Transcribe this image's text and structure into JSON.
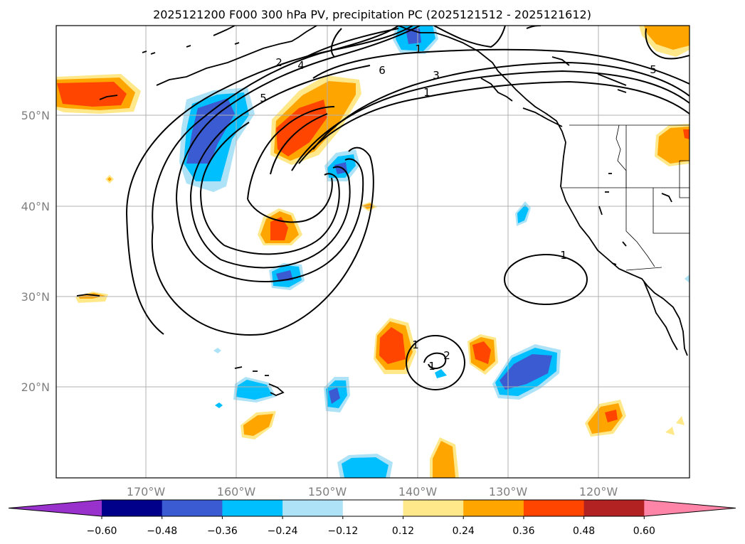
{
  "title": "2025121200 F000 300 hPa PV, precipitation PC (2025121512 - 2025121612)",
  "map": {
    "lat_labels": [
      "50°N",
      "40°N",
      "30°N",
      "20°N"
    ],
    "lon_labels": [
      "170°W",
      "160°W",
      "150°W",
      "140°W",
      "130°W",
      "120°W"
    ],
    "extent": {
      "lon_min": -180,
      "lon_max": -110,
      "lat_min": 10,
      "lat_max": 60
    }
  },
  "contour_labels": [
    "2",
    "4",
    "6",
    "3",
    "1",
    "5",
    "1",
    "5",
    "1",
    "1",
    "2",
    "1"
  ],
  "colorbar": {
    "ticks": [
      "−0.60",
      "−0.48",
      "−0.36",
      "−0.24",
      "−0.12",
      "0.12",
      "0.24",
      "0.36",
      "0.48",
      "0.60"
    ],
    "colors": [
      "#9932cc",
      "#00008b",
      "#3a5bd1",
      "#00bfff",
      "#aee3f7",
      "#ffffff",
      "#ffe88a",
      "#ffa500",
      "#ff4500",
      "#b22222",
      "#ff85a8"
    ]
  }
}
